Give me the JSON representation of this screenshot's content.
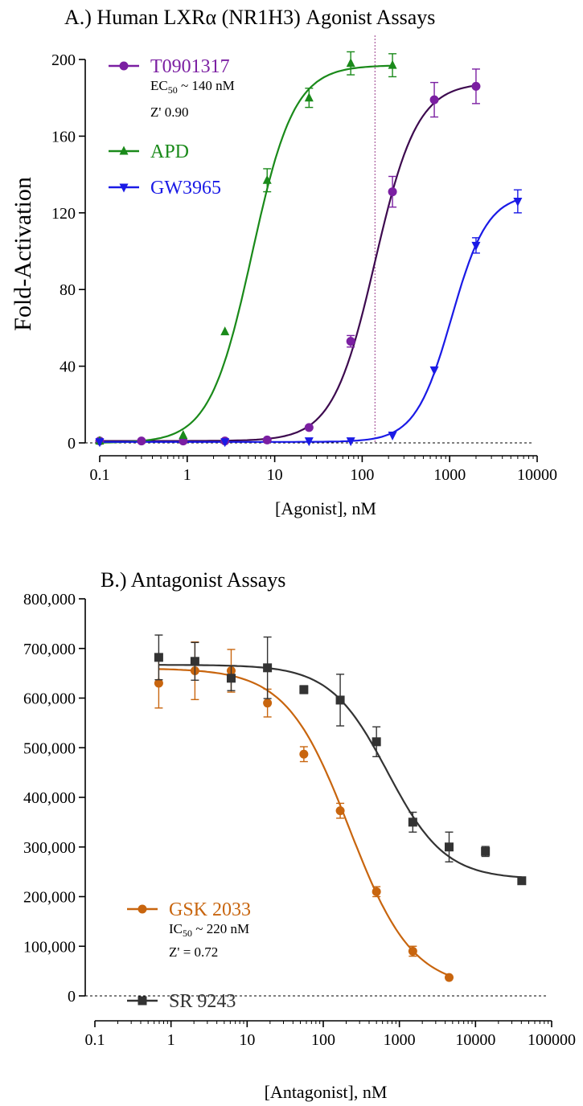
{
  "chart_data": [
    {
      "type": "scatter",
      "title": "A.) Human LXRα (NR1H3) Agonist Assays",
      "xlabel": "[Agonist], nM",
      "ylabel": "Fold-Activation",
      "xscale": "log",
      "xlim": [
        0.1,
        10000
      ],
      "ylim": [
        0,
        200
      ],
      "xticks": [
        "0.1",
        "1",
        "10",
        "100",
        "1000",
        "10000"
      ],
      "yticks": [
        "0",
        "40",
        "80",
        "120",
        "160",
        "200"
      ],
      "baseline_dashed": true,
      "reference_line_x": 140,
      "legend_position": "top-left",
      "series": [
        {
          "name": "T0901317",
          "color": "#7b1fa2",
          "curve_color": "#3d0a4f",
          "marker": "circle",
          "annotation": [
            "EC50 ~ 140 nM",
            "Z' 0.90"
          ],
          "fit": {
            "bottom": 1,
            "top": 188,
            "ec50": 140,
            "hill": 1.8
          },
          "points": [
            {
              "x": 0.1,
              "y": 1,
              "err": 0
            },
            {
              "x": 0.3,
              "y": 1,
              "err": 0
            },
            {
              "x": 0.9,
              "y": 1,
              "err": 0
            },
            {
              "x": 2.7,
              "y": 1,
              "err": 0
            },
            {
              "x": 8.2,
              "y": 1.5,
              "err": 0
            },
            {
              "x": 24.7,
              "y": 8,
              "err": 0
            },
            {
              "x": 74,
              "y": 53,
              "err": 3
            },
            {
              "x": 222,
              "y": 131,
              "err": 8
            },
            {
              "x": 667,
              "y": 179,
              "err": 9
            },
            {
              "x": 2000,
              "y": 186,
              "err": 9
            }
          ]
        },
        {
          "name": "APD",
          "color": "#1a8a1a",
          "curve_color": "#1a8a1a",
          "marker": "triangle-up",
          "annotation": [],
          "fit": {
            "bottom": 0,
            "top": 197,
            "ec50": 5.5,
            "hill": 1.8
          },
          "points": [
            {
              "x": 0.1,
              "y": 1,
              "err": 0
            },
            {
              "x": 0.9,
              "y": 4,
              "err": 0
            },
            {
              "x": 2.7,
              "y": 58,
              "err": 0
            },
            {
              "x": 8.2,
              "y": 137,
              "err": 6
            },
            {
              "x": 24.7,
              "y": 180,
              "err": 5
            },
            {
              "x": 74,
              "y": 198,
              "err": 6
            },
            {
              "x": 222,
              "y": 197,
              "err": 6
            }
          ]
        },
        {
          "name": "GW3965",
          "color": "#1a1ae6",
          "curve_color": "#1a1ae6",
          "marker": "triangle-down",
          "annotation": [],
          "fit": {
            "bottom": 0.5,
            "top": 130,
            "ec50": 1050,
            "hill": 2.1
          },
          "points": [
            {
              "x": 0.1,
              "y": 0.5,
              "err": 0
            },
            {
              "x": 2.7,
              "y": 0.5,
              "err": 0
            },
            {
              "x": 24.7,
              "y": 1,
              "err": 0
            },
            {
              "x": 74,
              "y": 1,
              "err": 0
            },
            {
              "x": 222,
              "y": 4,
              "err": 0
            },
            {
              "x": 667,
              "y": 38,
              "err": 0
            },
            {
              "x": 2000,
              "y": 103,
              "err": 4
            },
            {
              "x": 6000,
              "y": 126,
              "err": 6
            }
          ]
        }
      ]
    },
    {
      "type": "scatter",
      "title": "B.) Antagonist Assays",
      "xlabel": "[Antagonist], nM",
      "ylabel": "",
      "xscale": "log",
      "xlim": [
        0.1,
        100000
      ],
      "ylim": [
        0,
        800000
      ],
      "xticks": [
        "0.1",
        "1",
        "10",
        "100",
        "1000",
        "10000",
        "100000"
      ],
      "yticks": [
        "0",
        "100,000",
        "200,000",
        "300,000",
        "400,000",
        "500,000",
        "600,000",
        "700,000",
        "800,000"
      ],
      "baseline_dashed": true,
      "legend_position": "bottom-left",
      "series": [
        {
          "name": "GSK 2033",
          "color": "#c8650e",
          "curve_color": "#c8650e",
          "marker": "circle",
          "annotation": [
            "IC50 ~ 220 nM",
            "Z' = 0.72"
          ],
          "fit": {
            "bottom": 15000,
            "top": 660000,
            "ec50": 220,
            "hill": 1.05
          },
          "points": [
            {
              "x": 0.69,
              "y": 630000,
              "err": 50000
            },
            {
              "x": 2.06,
              "y": 655000,
              "err": 58000
            },
            {
              "x": 6.17,
              "y": 655000,
              "err": 43000
            },
            {
              "x": 18.5,
              "y": 590000,
              "err": 28000
            },
            {
              "x": 55.6,
              "y": 487000,
              "err": 15000
            },
            {
              "x": 167,
              "y": 373000,
              "err": 15000
            },
            {
              "x": 500,
              "y": 210000,
              "err": 10000
            },
            {
              "x": 1500,
              "y": 90000,
              "err": 10000
            },
            {
              "x": 4500,
              "y": 37000,
              "err": 0
            }
          ]
        },
        {
          "name": "SR 9243",
          "color": "#333333",
          "curve_color": "#333333",
          "marker": "square",
          "annotation": [],
          "fit": {
            "bottom": 235000,
            "top": 667000,
            "ec50": 700,
            "hill": 1.15
          },
          "points": [
            {
              "x": 0.69,
              "y": 682000,
              "err": 45000
            },
            {
              "x": 2.06,
              "y": 674000,
              "err": 38000
            },
            {
              "x": 6.17,
              "y": 640000,
              "err": 25000
            },
            {
              "x": 18.5,
              "y": 661000,
              "err": 62000
            },
            {
              "x": 55.6,
              "y": 617000,
              "err": 8000
            },
            {
              "x": 167,
              "y": 596000,
              "err": 52000
            },
            {
              "x": 500,
              "y": 512000,
              "err": 30000
            },
            {
              "x": 1500,
              "y": 350000,
              "err": 20000
            },
            {
              "x": 4500,
              "y": 300000,
              "err": 30000
            },
            {
              "x": 13500,
              "y": 291000,
              "err": 10000
            },
            {
              "x": 40500,
              "y": 232000,
              "err": 0
            }
          ]
        }
      ]
    }
  ]
}
